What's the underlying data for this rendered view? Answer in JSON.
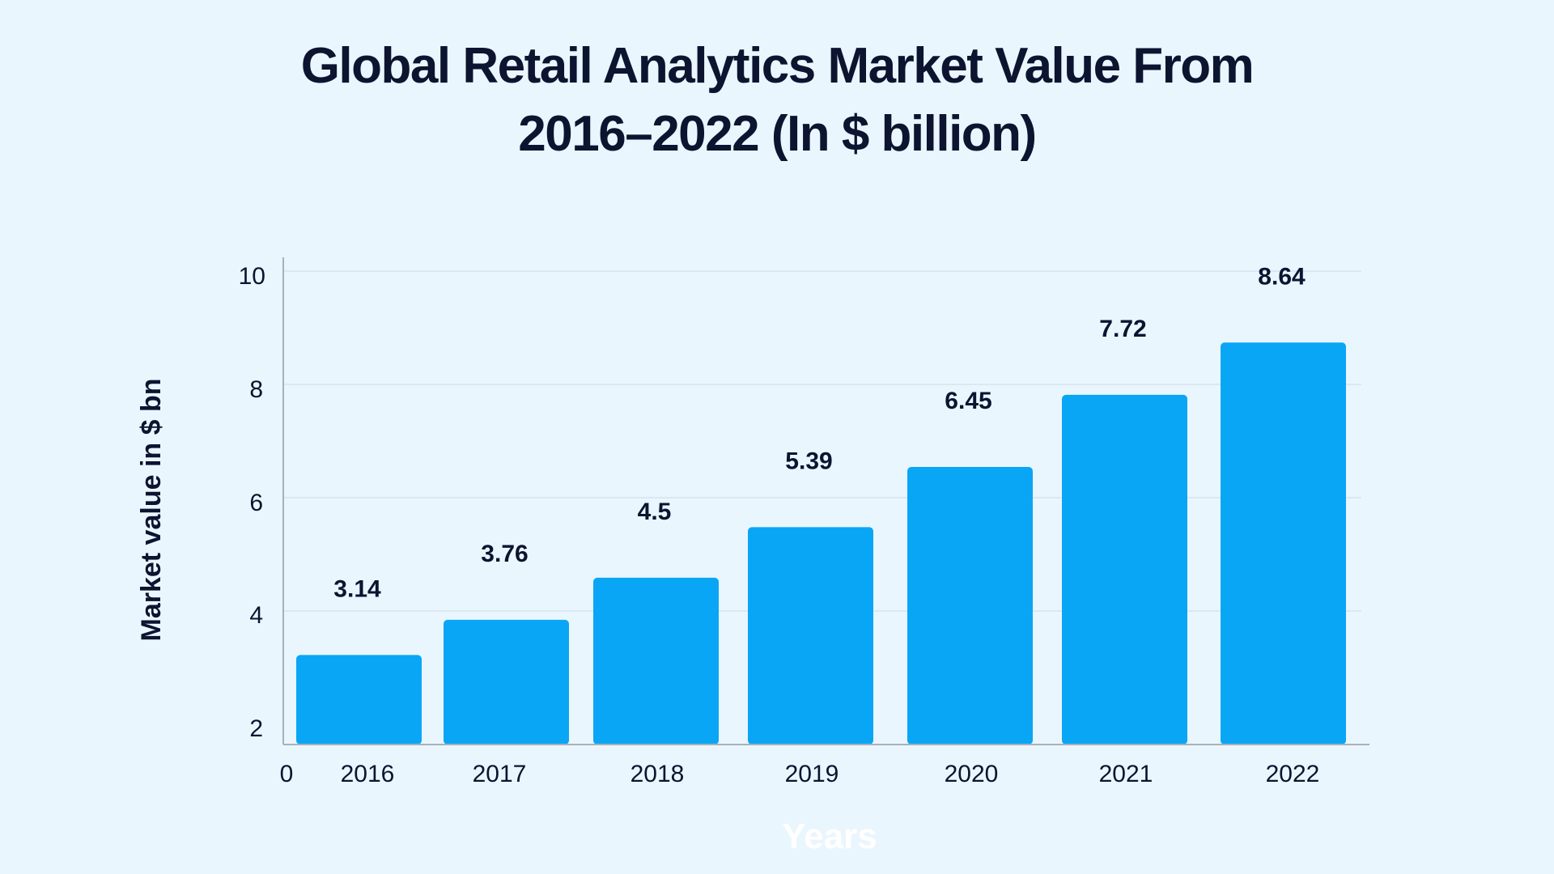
{
  "chart_data": {
    "type": "bar",
    "title_line1": "Global Retail Analytics Market Value From",
    "title_line2": "2016–2022 (In $ billion)",
    "xlabel": "Years",
    "ylabel": "Market value in $ bn",
    "categories": [
      "2016",
      "2017",
      "2018",
      "2019",
      "2020",
      "2021",
      "2022"
    ],
    "values": [
      3.14,
      3.76,
      4.5,
      5.39,
      6.45,
      7.72,
      8.64
    ],
    "y_ticks": [
      "2",
      "4",
      "6",
      "8",
      "10"
    ],
    "x_origin_label": "0",
    "grid": true,
    "legend": "none",
    "colors": {
      "bar": "#0aa6f6",
      "grid": "#d6e3ee",
      "axis": "#a8b0b8",
      "background": "#eaf6fe"
    }
  }
}
